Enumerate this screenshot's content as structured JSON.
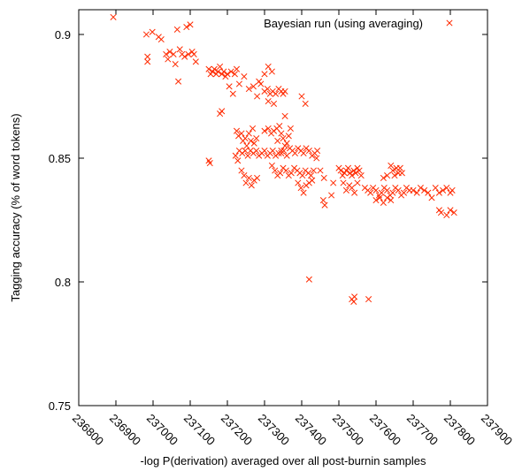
{
  "chart_data": {
    "type": "scatter",
    "xlabel": "-log P(derivation) averaged over all post-burnin samples",
    "ylabel": "Tagging accuracy (% of word tokens)",
    "xlim": [
      236800,
      237900
    ],
    "ylim": [
      0.75,
      0.91
    ],
    "xticks": [
      236800,
      236900,
      237000,
      237100,
      237200,
      237300,
      237400,
      237500,
      237600,
      237700,
      237800,
      237900
    ],
    "yticks": [
      0.75,
      0.8,
      0.85,
      0.9
    ],
    "ytick_labels": [
      "0.75",
      "0.8",
      "0.85",
      "0.9"
    ],
    "grid": false,
    "legend_position": "top-right",
    "marker": "x",
    "series_color": "#ff2a00",
    "series": [
      {
        "name": "Bayesian run (using averaging)",
        "points": [
          [
            236893,
            0.907
          ],
          [
            236982,
            0.9
          ],
          [
            236985,
            0.891
          ],
          [
            236985,
            0.889
          ],
          [
            236998,
            0.901
          ],
          [
            237015,
            0.899
          ],
          [
            237022,
            0.898
          ],
          [
            237035,
            0.892
          ],
          [
            237040,
            0.89
          ],
          [
            237045,
            0.893
          ],
          [
            237055,
            0.892
          ],
          [
            237060,
            0.888
          ],
          [
            237065,
            0.902
          ],
          [
            237068,
            0.881
          ],
          [
            237072,
            0.894
          ],
          [
            237078,
            0.892
          ],
          [
            237085,
            0.891
          ],
          [
            237090,
            0.903
          ],
          [
            237095,
            0.892
          ],
          [
            237100,
            0.904
          ],
          [
            237105,
            0.893
          ],
          [
            237110,
            0.892
          ],
          [
            237115,
            0.889
          ],
          [
            237150,
            0.886
          ],
          [
            237155,
            0.884
          ],
          [
            237160,
            0.885
          ],
          [
            237165,
            0.886
          ],
          [
            237170,
            0.884
          ],
          [
            237175,
            0.885
          ],
          [
            237180,
            0.887
          ],
          [
            237185,
            0.884
          ],
          [
            237190,
            0.885
          ],
          [
            237195,
            0.883
          ],
          [
            237200,
            0.884
          ],
          [
            237205,
            0.879
          ],
          [
            237210,
            0.885
          ],
          [
            237215,
            0.876
          ],
          [
            237220,
            0.884
          ],
          [
            237225,
            0.886
          ],
          [
            237185,
            0.869
          ],
          [
            237180,
            0.868
          ],
          [
            237232,
            0.88
          ],
          [
            237245,
            0.883
          ],
          [
            237258,
            0.878
          ],
          [
            237270,
            0.879
          ],
          [
            237280,
            0.875
          ],
          [
            237285,
            0.881
          ],
          [
            237290,
            0.88
          ],
          [
            237300,
            0.884
          ],
          [
            237310,
            0.887
          ],
          [
            237320,
            0.885
          ],
          [
            237300,
            0.877
          ],
          [
            237308,
            0.878
          ],
          [
            237315,
            0.876
          ],
          [
            237322,
            0.877
          ],
          [
            237330,
            0.876
          ],
          [
            237338,
            0.878
          ],
          [
            237345,
            0.877
          ],
          [
            237350,
            0.876
          ],
          [
            237355,
            0.877
          ],
          [
            237310,
            0.873
          ],
          [
            237325,
            0.872
          ],
          [
            237355,
            0.867
          ],
          [
            237400,
            0.875
          ],
          [
            237410,
            0.872
          ],
          [
            237150,
            0.849
          ],
          [
            237153,
            0.848
          ],
          [
            237225,
            0.861
          ],
          [
            237230,
            0.859
          ],
          [
            237238,
            0.86
          ],
          [
            237242,
            0.857
          ],
          [
            237248,
            0.858
          ],
          [
            237252,
            0.855
          ],
          [
            237258,
            0.86
          ],
          [
            237263,
            0.857
          ],
          [
            237268,
            0.862
          ],
          [
            237272,
            0.856
          ],
          [
            237278,
            0.858
          ],
          [
            237232,
            0.853
          ],
          [
            237240,
            0.852
          ],
          [
            237248,
            0.853
          ],
          [
            237255,
            0.851
          ],
          [
            237262,
            0.853
          ],
          [
            237270,
            0.852
          ],
          [
            237278,
            0.853
          ],
          [
            237285,
            0.851
          ],
          [
            237293,
            0.852
          ],
          [
            237300,
            0.853
          ],
          [
            237308,
            0.851
          ],
          [
            237315,
            0.852
          ],
          [
            237322,
            0.853
          ],
          [
            237330,
            0.851
          ],
          [
            237338,
            0.852
          ],
          [
            237345,
            0.853
          ],
          [
            237245,
            0.843
          ],
          [
            237250,
            0.84
          ],
          [
            237258,
            0.842
          ],
          [
            237265,
            0.839
          ],
          [
            237272,
            0.841
          ],
          [
            237280,
            0.842
          ],
          [
            237238,
            0.845
          ],
          [
            237228,
            0.849
          ],
          [
            237222,
            0.851
          ],
          [
            237300,
            0.861
          ],
          [
            237310,
            0.862
          ],
          [
            237318,
            0.86
          ],
          [
            237325,
            0.861
          ],
          [
            237333,
            0.862
          ],
          [
            237340,
            0.863
          ],
          [
            237345,
            0.86
          ],
          [
            237350,
            0.858
          ],
          [
            237355,
            0.855
          ],
          [
            237360,
            0.856
          ],
          [
            237365,
            0.859
          ],
          [
            237370,
            0.862
          ],
          [
            237335,
            0.857
          ],
          [
            237320,
            0.847
          ],
          [
            237328,
            0.845
          ],
          [
            237335,
            0.843
          ],
          [
            237342,
            0.844
          ],
          [
            237350,
            0.846
          ],
          [
            237358,
            0.845
          ],
          [
            237365,
            0.843
          ],
          [
            237372,
            0.844
          ],
          [
            237380,
            0.846
          ],
          [
            237388,
            0.845
          ],
          [
            237395,
            0.844
          ],
          [
            237402,
            0.843
          ],
          [
            237410,
            0.845
          ],
          [
            237418,
            0.844
          ],
          [
            237425,
            0.843
          ],
          [
            237432,
            0.845
          ],
          [
            237345,
            0.852
          ],
          [
            237352,
            0.853
          ],
          [
            237360,
            0.851
          ],
          [
            237368,
            0.854
          ],
          [
            237375,
            0.853
          ],
          [
            237382,
            0.852
          ],
          [
            237390,
            0.854
          ],
          [
            237398,
            0.853
          ],
          [
            237405,
            0.852
          ],
          [
            237412,
            0.854
          ],
          [
            237420,
            0.853
          ],
          [
            237428,
            0.851
          ],
          [
            237435,
            0.852
          ],
          [
            237442,
            0.853
          ],
          [
            237390,
            0.84
          ],
          [
            237398,
            0.838
          ],
          [
            237405,
            0.836
          ],
          [
            237412,
            0.839
          ],
          [
            237420,
            0.84
          ],
          [
            237428,
            0.841
          ],
          [
            237440,
            0.85
          ],
          [
            237450,
            0.845
          ],
          [
            237460,
            0.842
          ],
          [
            237458,
            0.833
          ],
          [
            237462,
            0.831
          ],
          [
            237420,
            0.801
          ],
          [
            237480,
            0.835
          ],
          [
            237485,
            0.84
          ],
          [
            237500,
            0.846
          ],
          [
            237505,
            0.845
          ],
          [
            237510,
            0.843
          ],
          [
            237515,
            0.844
          ],
          [
            237520,
            0.845
          ],
          [
            237525,
            0.846
          ],
          [
            237530,
            0.844
          ],
          [
            237535,
            0.843
          ],
          [
            237540,
            0.845
          ],
          [
            237545,
            0.844
          ],
          [
            237550,
            0.846
          ],
          [
            237555,
            0.845
          ],
          [
            237560,
            0.843
          ],
          [
            237512,
            0.84
          ],
          [
            237520,
            0.837
          ],
          [
            237528,
            0.839
          ],
          [
            237535,
            0.838
          ],
          [
            237542,
            0.836
          ],
          [
            237550,
            0.84
          ],
          [
            237535,
            0.793
          ],
          [
            237540,
            0.792
          ],
          [
            237542,
            0.794
          ],
          [
            237580,
            0.793
          ],
          [
            237570,
            0.838
          ],
          [
            237578,
            0.837
          ],
          [
            237585,
            0.836
          ],
          [
            237592,
            0.838
          ],
          [
            237600,
            0.837
          ],
          [
            237608,
            0.835
          ],
          [
            237615,
            0.836
          ],
          [
            237622,
            0.838
          ],
          [
            237630,
            0.837
          ],
          [
            237638,
            0.835
          ],
          [
            237645,
            0.836
          ],
          [
            237652,
            0.838
          ],
          [
            237660,
            0.837
          ],
          [
            237668,
            0.835
          ],
          [
            237675,
            0.836
          ],
          [
            237682,
            0.838
          ],
          [
            237690,
            0.837
          ],
          [
            237600,
            0.833
          ],
          [
            237610,
            0.834
          ],
          [
            237620,
            0.832
          ],
          [
            237630,
            0.834
          ],
          [
            237640,
            0.833
          ],
          [
            237640,
            0.847
          ],
          [
            237645,
            0.845
          ],
          [
            237650,
            0.843
          ],
          [
            237655,
            0.846
          ],
          [
            237660,
            0.844
          ],
          [
            237665,
            0.846
          ],
          [
            237670,
            0.844
          ],
          [
            237620,
            0.842
          ],
          [
            237630,
            0.843
          ],
          [
            237700,
            0.837
          ],
          [
            237710,
            0.836
          ],
          [
            237720,
            0.838
          ],
          [
            237730,
            0.837
          ],
          [
            237740,
            0.836
          ],
          [
            237750,
            0.834
          ],
          [
            237760,
            0.838
          ],
          [
            237770,
            0.836
          ],
          [
            237780,
            0.837
          ],
          [
            237790,
            0.838
          ],
          [
            237800,
            0.836
          ],
          [
            237805,
            0.837
          ],
          [
            237770,
            0.829
          ],
          [
            237775,
            0.828
          ],
          [
            237790,
            0.827
          ],
          [
            237800,
            0.829
          ],
          [
            237810,
            0.828
          ]
        ]
      }
    ]
  }
}
